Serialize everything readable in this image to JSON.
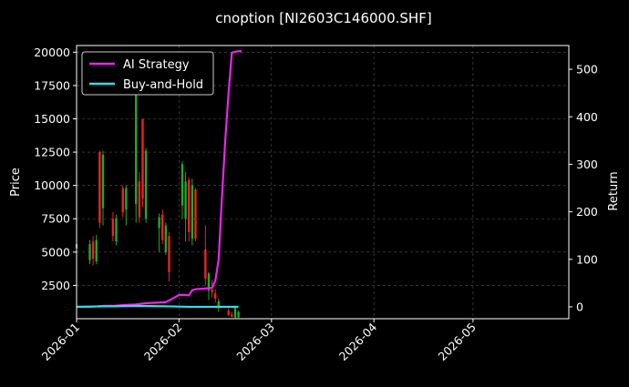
{
  "chart_data": {
    "type": "line",
    "title": "cnoption [NI2603C146000.SHF]",
    "ylabel": "Price",
    "y2label": "Return",
    "xlim": [
      "2026-01-01",
      "2026-05-30"
    ],
    "ylim": [
      0,
      20500
    ],
    "y2lim": [
      -25,
      550
    ],
    "x_ticks": [
      "2026-01",
      "2026-02",
      "2026-03",
      "2026-04",
      "2026-05"
    ],
    "y_ticks": [
      2500,
      5000,
      7500,
      10000,
      12500,
      15000,
      17500,
      20000
    ],
    "y2_ticks": [
      0,
      100,
      200,
      300,
      400,
      500
    ],
    "grid": true,
    "legend_position": "top-left",
    "colors": {
      "background": "#000000",
      "up_candle": "#22aa22",
      "down_candle": "#ee2222",
      "strategy": "#ee22ee",
      "buy_hold": "#33ddee"
    },
    "candles": [
      {
        "date": "2026-01-01",
        "open": 5300,
        "high": 5800,
        "low": 4800,
        "close": 5600
      },
      {
        "date": "2026-01-05",
        "open": 4400,
        "high": 5900,
        "low": 4100,
        "close": 5600
      },
      {
        "date": "2026-01-06",
        "open": 5800,
        "high": 6200,
        "low": 4000,
        "close": 4500
      },
      {
        "date": "2026-01-07",
        "open": 4300,
        "high": 6300,
        "low": 4100,
        "close": 5900
      },
      {
        "date": "2026-01-08",
        "open": 12500,
        "high": 12600,
        "low": 6800,
        "close": 7200
      },
      {
        "date": "2026-01-09",
        "open": 8300,
        "high": 12600,
        "low": 7000,
        "close": 12300
      },
      {
        "date": "2026-01-12",
        "open": 7500,
        "high": 8000,
        "low": 5800,
        "close": 6200
      },
      {
        "date": "2026-01-13",
        "open": 5800,
        "high": 7800,
        "low": 5500,
        "close": 7500
      },
      {
        "date": "2026-01-15",
        "open": 9800,
        "high": 10000,
        "low": 7600,
        "close": 8000
      },
      {
        "date": "2026-01-16",
        "open": 8200,
        "high": 10000,
        "low": 7000,
        "close": 9800
      },
      {
        "date": "2026-01-19",
        "open": 8600,
        "high": 17400,
        "low": 7200,
        "close": 16800
      },
      {
        "date": "2026-01-20",
        "open": 10300,
        "high": 11000,
        "low": 7200,
        "close": 7600
      },
      {
        "date": "2026-01-21",
        "open": 15000,
        "high": 15000,
        "low": 8400,
        "close": 9000
      },
      {
        "date": "2026-01-22",
        "open": 7500,
        "high": 12800,
        "low": 7200,
        "close": 12600
      },
      {
        "date": "2026-01-26",
        "open": 6800,
        "high": 7900,
        "low": 5000,
        "close": 7600
      },
      {
        "date": "2026-01-27",
        "open": 7800,
        "high": 8200,
        "low": 5600,
        "close": 5900
      },
      {
        "date": "2026-01-28",
        "open": 5000,
        "high": 7200,
        "low": 4800,
        "close": 7000
      },
      {
        "date": "2026-01-29",
        "open": 6200,
        "high": 6500,
        "low": 2800,
        "close": 3500
      },
      {
        "date": "2026-02-02",
        "open": 8500,
        "high": 11800,
        "low": 7500,
        "close": 11600
      },
      {
        "date": "2026-02-03",
        "open": 7500,
        "high": 11000,
        "low": 5800,
        "close": 10300
      },
      {
        "date": "2026-02-04",
        "open": 10400,
        "high": 10600,
        "low": 5800,
        "close": 6500
      },
      {
        "date": "2026-02-05",
        "open": 6000,
        "high": 10500,
        "low": 5500,
        "close": 10000
      },
      {
        "date": "2026-02-06",
        "open": 9700,
        "high": 9800,
        "low": 5800,
        "close": 6000
      },
      {
        "date": "2026-02-09",
        "open": 5200,
        "high": 7000,
        "low": 2500,
        "close": 3000
      },
      {
        "date": "2026-02-10",
        "open": 2100,
        "high": 3500,
        "low": 1400,
        "close": 3400
      },
      {
        "date": "2026-02-11",
        "open": 2200,
        "high": 2900,
        "low": 1600,
        "close": 2000
      },
      {
        "date": "2026-02-12",
        "open": 1900,
        "high": 2200,
        "low": 1200,
        "close": 1500
      },
      {
        "date": "2026-02-13",
        "open": 800,
        "high": 1500,
        "low": 500,
        "close": 1300
      },
      {
        "date": "2026-02-16",
        "open": 600,
        "high": 800,
        "low": 200,
        "close": 300
      },
      {
        "date": "2026-02-17",
        "open": 300,
        "high": 500,
        "low": 100,
        "close": 150
      },
      {
        "date": "2026-02-18",
        "open": 80,
        "high": 1000,
        "low": 50,
        "close": 800
      },
      {
        "date": "2026-02-19",
        "open": 100,
        "high": 600,
        "low": 50,
        "close": 500
      }
    ],
    "series": [
      {
        "name": "AI Strategy",
        "x": [
          "2026-01-01",
          "2026-01-05",
          "2026-01-09",
          "2026-01-12",
          "2026-01-14",
          "2026-01-16",
          "2026-01-19",
          "2026-01-21",
          "2026-01-23",
          "2026-01-26",
          "2026-01-28",
          "2026-01-30",
          "2026-02-01",
          "2026-02-03",
          "2026-02-04",
          "2026-02-05",
          "2026-02-06",
          "2026-02-08",
          "2026-02-11",
          "2026-02-12",
          "2026-02-13",
          "2026-02-14",
          "2026-02-15",
          "2026-02-16",
          "2026-02-17",
          "2026-02-18",
          "2026-02-19",
          "2026-02-20"
        ],
        "values": [
          0,
          0,
          2,
          2,
          3,
          4,
          5,
          7,
          8,
          9,
          10,
          17,
          25,
          25,
          24,
          35,
          37,
          38,
          40,
          55,
          100,
          230,
          350,
          450,
          535,
          537,
          538,
          538
        ]
      },
      {
        "name": "Buy-and-Hold",
        "x": [
          "2026-01-01",
          "2026-01-09",
          "2026-01-19",
          "2026-01-29",
          "2026-02-04",
          "2026-02-09",
          "2026-02-19"
        ],
        "values": [
          0,
          1,
          2,
          1,
          0,
          0,
          0
        ]
      }
    ]
  }
}
